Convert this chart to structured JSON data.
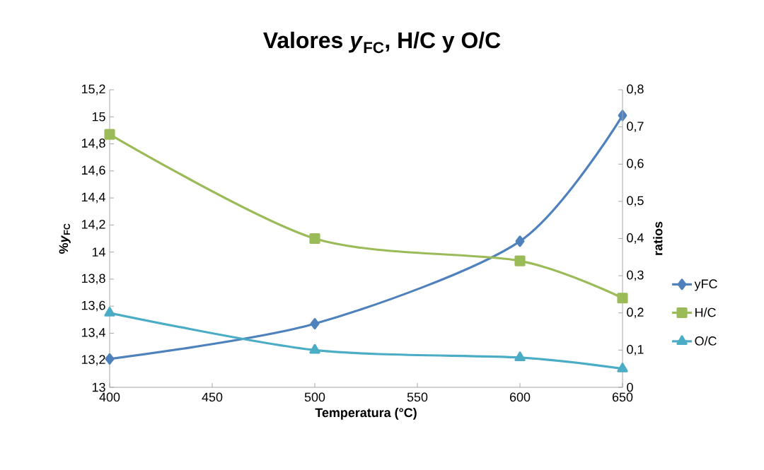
{
  "chart_data": {
    "type": "line",
    "title": "Valores *y*$_{FC}$, H/C y O/C",
    "xlabel": "Temperatura (°C)",
    "ylabel": "%*y*$_{FC}$",
    "y2label": "ratios",
    "x": [
      400,
      500,
      600,
      650
    ],
    "series": [
      {
        "name": "yFC",
        "color": "#4f81bd",
        "marker": "diamond",
        "values": [
          13.21,
          13.47,
          14.08,
          15.01
        ]
      },
      {
        "name": "H/C",
        "color": "#9bbb59",
        "marker": "square",
        "axis": "y2",
        "values": [
          0.68,
          0.4,
          0.34,
          0.24
        ]
      },
      {
        "name": "O/C",
        "color": "#4bacc6",
        "marker": "triangle",
        "axis": "y2",
        "values": [
          0.2,
          0.1,
          0.08,
          0.05
        ]
      }
    ],
    "xlim": [
      400,
      650
    ],
    "xticks": [
      400,
      450,
      500,
      550,
      600,
      650
    ],
    "ylim": [
      13,
      15.2
    ],
    "yticks": [
      13,
      {
        "value": 13.2,
        "label": "13,2"
      },
      {
        "value": 13.4,
        "label": "13,4"
      },
      {
        "value": 13.6,
        "label": "13,6"
      },
      {
        "value": 13.8,
        "label": "13,8"
      },
      14,
      {
        "value": 14.2,
        "label": "14,2"
      },
      {
        "value": 14.4,
        "label": "14,4"
      },
      {
        "value": 14.6,
        "label": "14,6"
      },
      {
        "value": 14.8,
        "label": "14,8"
      },
      15,
      {
        "value": 15.2,
        "label": "15,2"
      }
    ],
    "y2lim": [
      0,
      0.8
    ],
    "y2ticks": [
      0,
      {
        "value": 0.1,
        "label": "0,1"
      },
      {
        "value": 0.2,
        "label": "0,2"
      },
      {
        "value": 0.3,
        "label": "0,3"
      },
      {
        "value": 0.4,
        "label": "0,4"
      },
      {
        "value": 0.5,
        "label": "0,5"
      },
      {
        "value": 0.6,
        "label": "0,6"
      },
      {
        "value": 0.7,
        "label": "0,7"
      },
      {
        "value": 0.8,
        "label": "0,8"
      }
    ],
    "grid": false,
    "legend": "right"
  }
}
